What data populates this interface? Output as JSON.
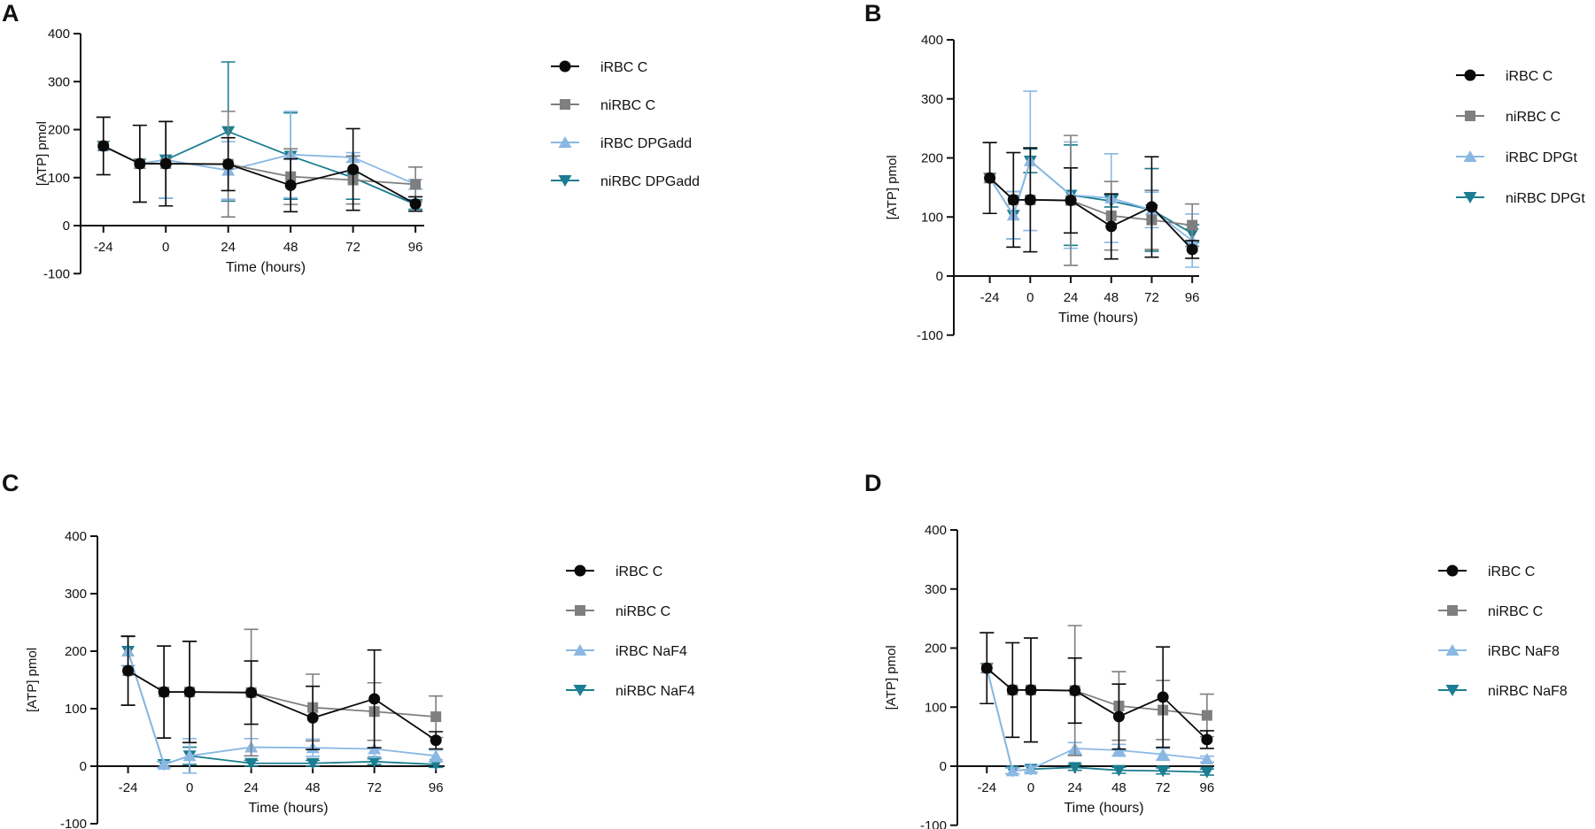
{
  "figure": {
    "colors": {
      "iRBC_C": "#0a0a0a",
      "niRBC_C": "#7f7f7f",
      "iRBC_treat": "#8ab8e3",
      "niRBC_treat": "#1b7d91"
    }
  },
  "chart_data": [
    {
      "panel": "A",
      "type": "line",
      "xlabel": "Time (hours)",
      "ylabel": "[ATP] pmol",
      "ylim": [
        -100,
        400
      ],
      "yticks": [
        -100,
        0,
        100,
        200,
        300,
        400
      ],
      "xlim": [
        -28,
        98
      ],
      "xticks": [
        -24,
        0,
        24,
        48,
        72,
        96
      ],
      "xtick_labels": [
        "-24",
        "0",
        "24",
        "48",
        "72",
        "96"
      ],
      "x": [
        -24,
        -10,
        0,
        24,
        48,
        72,
        96
      ],
      "series": [
        {
          "name": "iRBC C",
          "marker": "circle",
          "color": "#0a0a0a",
          "values": [
            166,
            129,
            129,
            128,
            84,
            117,
            45
          ],
          "err": [
            60,
            80,
            88,
            55,
            55,
            85,
            15
          ]
        },
        {
          "name": "niRBC C",
          "marker": "square",
          "color": "#7f7f7f",
          "values": [
            166,
            129,
            129,
            128,
            102,
            95,
            86
          ],
          "err": [
            60,
            80,
            88,
            110,
            58,
            50,
            36
          ]
        },
        {
          "name": "iRBC DPGadd",
          "marker": "triangle-up",
          "color": "#8ab8e3",
          "values": [
            166,
            129,
            137,
            115,
            148,
            142,
            86
          ],
          "err": [
            0,
            0,
            80,
            60,
            90,
            10,
            10
          ]
        },
        {
          "name": "niRBC DPGadd",
          "marker": "triangle-down",
          "color": "#1b7d91",
          "values": [
            166,
            129,
            137,
            196,
            145,
            100,
            44
          ],
          "err": [
            0,
            0,
            80,
            145,
            90,
            45,
            10
          ]
        }
      ]
    },
    {
      "panel": "B",
      "type": "line",
      "xlabel": "Time (hours)",
      "ylabel": "[ATP] pmol",
      "ylim": [
        -100,
        400
      ],
      "yticks": [
        -100,
        0,
        100,
        200,
        300,
        400
      ],
      "xlim": [
        -28,
        98
      ],
      "xticks": [
        -24,
        0,
        24,
        48,
        72,
        96
      ],
      "xtick_labels": [
        "-24",
        "0",
        "24",
        "48",
        "72",
        "96"
      ],
      "x": [
        -24,
        -10,
        0,
        24,
        48,
        72,
        96
      ],
      "series": [
        {
          "name": "iRBC C",
          "marker": "circle",
          "color": "#0a0a0a",
          "values": [
            166,
            129,
            129,
            128,
            84,
            117,
            45
          ],
          "err": [
            60,
            80,
            88,
            55,
            55,
            85,
            15
          ]
        },
        {
          "name": "niRBC C",
          "marker": "square",
          "color": "#7f7f7f",
          "values": [
            166,
            129,
            129,
            128,
            102,
            95,
            86
          ],
          "err": [
            60,
            80,
            88,
            110,
            58,
            50,
            36
          ]
        },
        {
          "name": "iRBC DPGt",
          "marker": "triangle-up",
          "color": "#8ab8e3",
          "values": [
            166,
            103,
            195,
            137,
            132,
            112,
            60
          ],
          "err": [
            0,
            40,
            118,
            90,
            75,
            30,
            45
          ]
        },
        {
          "name": "niRBC DPGt",
          "marker": "triangle-down",
          "color": "#1b7d91",
          "values": [
            166,
            103,
            195,
            137,
            127,
            112,
            72
          ],
          "err": [
            0,
            40,
            20,
            85,
            10,
            70,
            15
          ]
        }
      ]
    },
    {
      "panel": "C",
      "type": "line",
      "xlabel": "Time (hours)",
      "ylabel": "[ATP] pmol",
      "ylim": [
        -100,
        400
      ],
      "yticks": [
        -100,
        0,
        100,
        200,
        300,
        400
      ],
      "xlim": [
        -28,
        98
      ],
      "xticks": [
        -24,
        0,
        24,
        48,
        72,
        96
      ],
      "xtick_labels": [
        "-24",
        "0",
        "24",
        "48",
        "72",
        "96"
      ],
      "x": [
        -24,
        -10,
        0,
        24,
        48,
        72,
        96
      ],
      "series": [
        {
          "name": "iRBC C",
          "marker": "circle",
          "color": "#0a0a0a",
          "values": [
            166,
            129,
            129,
            128,
            84,
            117,
            45
          ],
          "err": [
            60,
            80,
            88,
            55,
            55,
            85,
            15
          ]
        },
        {
          "name": "niRBC C",
          "marker": "square",
          "color": "#7f7f7f",
          "values": [
            166,
            129,
            129,
            128,
            102,
            95,
            86
          ],
          "err": [
            60,
            80,
            88,
            110,
            58,
            50,
            36
          ]
        },
        {
          "name": "iRBC NaF4",
          "marker": "triangle-up",
          "color": "#8ab8e3",
          "values": [
            200,
            3,
            18,
            33,
            32,
            30,
            18
          ],
          "err": [
            25,
            5,
            30,
            15,
            15,
            15,
            10
          ]
        },
        {
          "name": "niRBC NaF4",
          "marker": "triangle-down",
          "color": "#1b7d91",
          "values": [
            200,
            3,
            18,
            5,
            5,
            8,
            3
          ],
          "err": [
            25,
            5,
            15,
            5,
            5,
            5,
            5
          ]
        }
      ]
    },
    {
      "panel": "D",
      "type": "line",
      "xlabel": "Time (hours)",
      "ylabel": "[ATP] pmol",
      "ylim": [
        -100,
        400
      ],
      "yticks": [
        -100,
        0,
        100,
        200,
        300,
        400
      ],
      "xlim": [
        -28,
        98
      ],
      "xticks": [
        -24,
        0,
        24,
        48,
        72,
        96
      ],
      "xtick_labels": [
        "-24",
        "0",
        "24",
        "48",
        "72",
        "96"
      ],
      "x": [
        -24,
        -10,
        0,
        24,
        48,
        72,
        96
      ],
      "series": [
        {
          "name": "iRBC C",
          "marker": "circle",
          "color": "#0a0a0a",
          "values": [
            166,
            129,
            129,
            128,
            84,
            117,
            45
          ],
          "err": [
            60,
            80,
            88,
            55,
            55,
            85,
            15
          ]
        },
        {
          "name": "niRBC C",
          "marker": "square",
          "color": "#7f7f7f",
          "values": [
            166,
            129,
            129,
            128,
            102,
            95,
            86
          ],
          "err": [
            60,
            80,
            88,
            110,
            58,
            50,
            36
          ]
        },
        {
          "name": "iRBC NaF8",
          "marker": "triangle-up",
          "color": "#8ab8e3",
          "values": [
            166,
            -8,
            -5,
            30,
            27,
            20,
            12
          ],
          "err": [
            0,
            5,
            5,
            10,
            10,
            10,
            5
          ]
        },
        {
          "name": "niRBC NaF8",
          "marker": "triangle-down",
          "color": "#1b7d91",
          "values": [
            166,
            -8,
            -5,
            -2,
            -7,
            -8,
            -10
          ],
          "err": [
            0,
            5,
            5,
            5,
            5,
            5,
            5
          ]
        }
      ]
    }
  ]
}
